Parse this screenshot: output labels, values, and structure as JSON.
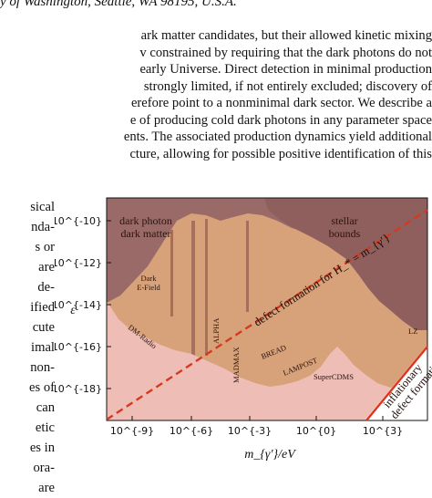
{
  "header": {
    "affiliation": "y of Washington, Seattle, WA 98195, U.S.A."
  },
  "abstract_lines": [
    "ark matter candidates, but their allowed kinetic mixing",
    "v constrained by requiring that the dark photons do not",
    " early Universe. Direct detection in minimal production",
    "strongly limited, if not entirely excluded; discovery of",
    "erefore point to a nonminimal dark sector. We describe a",
    "e of producing cold dark photons in any parameter space",
    "ents. The associated production dynamics yield additional",
    "cture, allowing for possible positive identification of this"
  ],
  "left_column_lines": [
    "sical",
    "nda-",
    "s or",
    "are",
    "de-",
    "ified",
    "cute",
    "imal",
    "non-",
    "es of",
    "can",
    "etic",
    "es in",
    "ora-",
    "are"
  ],
  "figure": {
    "xlabel": "m_{γ′}/eV",
    "ylabel": "ε",
    "x_ticks": [
      "10^{-9}",
      "10^{-6}",
      "10^{-3}",
      "10^{0}",
      "10^{3}"
    ],
    "y_ticks": [
      "10^{-10}",
      "10^{-12}",
      "10^{-14}",
      "10^{-16}",
      "10^{-18}"
    ],
    "regions": {
      "dpdm": [
        "dark photon",
        "dark matter"
      ],
      "stellar": [
        "stellar",
        "bounds"
      ],
      "efield": [
        "Dark",
        "E-Field"
      ],
      "dmradio": "DM-Radio",
      "alpha": "ALPHA",
      "madmax": "MADMAX",
      "bread": "BREAD",
      "lampost": "LAMPOST",
      "supercdms": "SuperCDMS",
      "lz": "LZ"
    },
    "lines": {
      "defect": "defect formation for H_* = m_{γ′}",
      "inflationary": [
        "inflationary",
        "defect formation"
      ]
    },
    "colors": {
      "top_band": "#9a6a68",
      "stellar": "#8f5f5e",
      "tan": "#d7a27a",
      "pink": "#eebdb5",
      "dashed": "#d33a1f",
      "solid": "#e0331c"
    }
  }
}
